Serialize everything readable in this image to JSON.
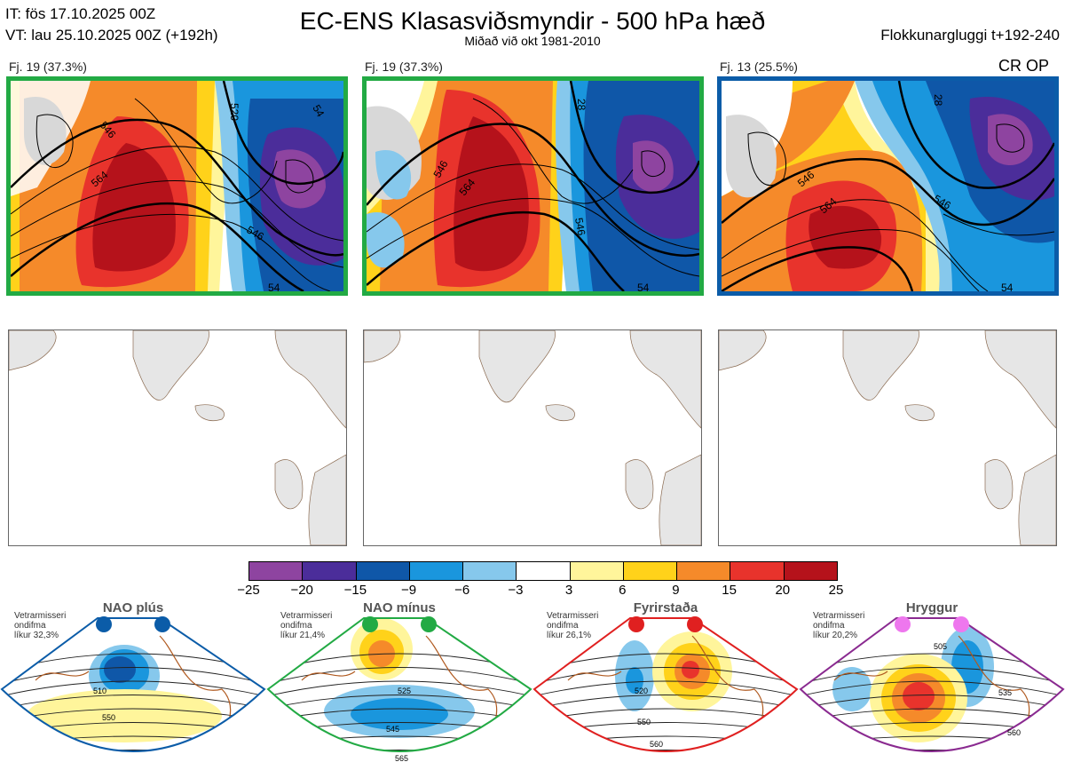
{
  "header": {
    "it_line": "IT: fös 17.10.2025 00Z",
    "vt_line": "VT: lau 25.10.2025 00Z  (+192h)",
    "title": "EC-ENS Klasasviðsmyndir - 500 hPa hæð",
    "subtitle": "Miðað við okt 1981-2010",
    "window": "Flokkunargluggi t+192-240"
  },
  "clusters": [
    {
      "label": "Fj. 19 (37.3%)",
      "border_color": "#22aa44",
      "extra": ""
    },
    {
      "label": "Fj. 19 (37.3%)",
      "border_color": "#22aa44",
      "extra": ""
    },
    {
      "label": "Fj. 13 (25.5%)",
      "border_color": "#0b5ca8",
      "extra": "CR OP"
    }
  ],
  "contour_labels": {
    "c1": [
      "546",
      "564",
      "546",
      "520",
      "54",
      "54"
    ],
    "c2": [
      "546",
      "564",
      "546",
      "28",
      "54"
    ],
    "c3": [
      "546",
      "564",
      "546",
      "28",
      "54"
    ]
  },
  "colorbar": {
    "ticks": [
      "−25",
      "−20",
      "−15",
      "−9",
      "−6",
      "−3",
      "3",
      "6",
      "9",
      "15",
      "20",
      "25"
    ],
    "colors": [
      "#8e44a0",
      "#4b2d9a",
      "#0f57a8",
      "#1a96dd",
      "#86c8ec",
      "#ffffff",
      "#fff59b",
      "#ffd21a",
      "#f58a2a",
      "#e8332c",
      "#b5121b"
    ]
  },
  "regimes": [
    {
      "name": "NAO plús",
      "stats": [
        "Vetrarmisseri",
        "ondifma",
        "líkur 32,3%"
      ],
      "color": "#0b5ca8",
      "dot_color": "#0b5ca8",
      "labels": [
        "510",
        "550"
      ]
    },
    {
      "name": "NAO mínus",
      "stats": [
        "Vetrarmisseri",
        "ondifma",
        "líkur 21,4%"
      ],
      "color": "#22aa44",
      "dot_color": "#22aa44",
      "labels": [
        "525",
        "545",
        "565"
      ]
    },
    {
      "name": "Fyrirstaða",
      "stats": [
        "Vetrarmisseri",
        "ondifma",
        "líkur 26,1%"
      ],
      "color": "#e02020",
      "dot_color": "#e02020",
      "labels": [
        "520",
        "550",
        "560"
      ]
    },
    {
      "name": "Hryggur",
      "stats": [
        "Vetrarmisseri",
        "ondifma",
        "líkur 20,2%"
      ],
      "color": "#8a2a90",
      "dot_color": "#ee77ee",
      "labels": [
        "505",
        "535",
        "560"
      ]
    }
  ]
}
